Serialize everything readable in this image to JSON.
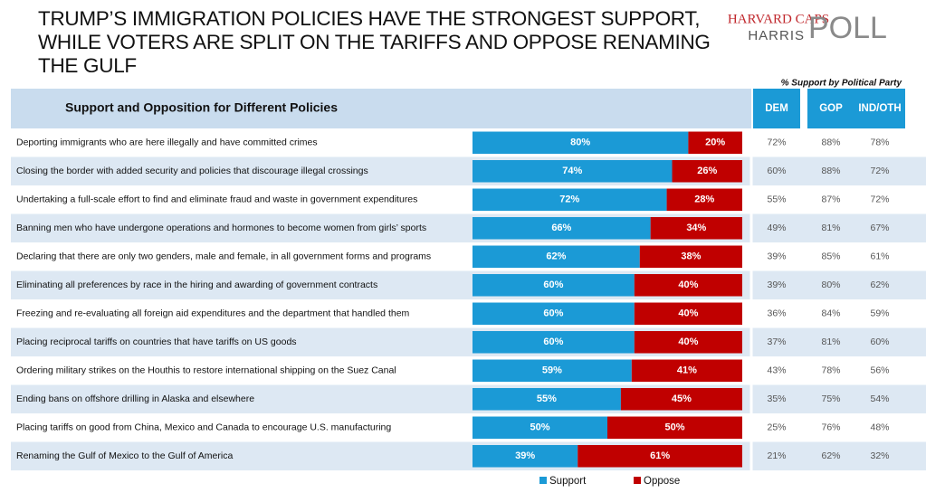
{
  "header": {
    "title": "TRUMP’S IMMIGRATION POLICIES HAVE THE STRONGEST SUPPORT, WHILE VOTERS ARE SPLIT ON THE TARIFFS AND OPPOSE RENAMING THE GULF",
    "logo_top": "HARVARD CAPS",
    "logo_mid": "HARRIS",
    "logo_big": "POLL"
  },
  "chart_data": {
    "type": "stacked-bar-horizontal",
    "title": "Support and Opposition for Different Policies",
    "categories": [
      "Deporting immigrants who are here illegally and have committed crimes",
      "Closing the border with added security and policies that discourage illegal crossings",
      "Undertaking a full-scale effort to find and eliminate fraud and waste in government expenditures",
      "Banning men who have undergone operations and hormones to become women from girls’ sports",
      "Declaring that there are only two genders, male and female, in all government forms and programs",
      "Eliminating all preferences by race in the hiring and awarding of government contracts",
      "Freezing and re-evaluating all foreign aid expenditures and the department that handled them",
      "Placing reciprocal tariffs on countries that have tariffs on US goods",
      "Ordering military strikes on the Houthis to restore international shipping on the Suez Canal",
      "Ending bans on offshore drilling in Alaska and elsewhere",
      "Placing tariffs on good from China, Mexico and Canada to encourage U.S. manufacturing",
      "Renaming the Gulf of Mexico to the Gulf of America"
    ],
    "series": [
      {
        "name": "Support",
        "color": "#1b9ad6",
        "values": [
          80,
          74,
          72,
          66,
          62,
          60,
          60,
          60,
          59,
          55,
          50,
          39
        ],
        "value_labels": [
          "80%",
          "74%",
          "72%",
          "66%",
          "62%",
          "60%",
          "60%",
          "60%",
          "59%",
          "55%",
          "50%",
          "39%"
        ]
      },
      {
        "name": "Oppose",
        "color": "#c00000",
        "values": [
          20,
          26,
          28,
          34,
          38,
          40,
          40,
          40,
          41,
          45,
          50,
          61
        ],
        "value_labels": [
          "20%",
          "26%",
          "28%",
          "34%",
          "38%",
          "40%",
          "40%",
          "40%",
          "41%",
          "45%",
          "50%",
          "61%"
        ]
      }
    ],
    "xlim": [
      0,
      100
    ]
  },
  "party_table": {
    "caption": "% Support by Political Party",
    "columns": [
      "DEM",
      "GOP",
      "IND/OTH"
    ],
    "rows": [
      [
        "72%",
        "88%",
        "78%"
      ],
      [
        "60%",
        "88%",
        "72%"
      ],
      [
        "55%",
        "87%",
        "72%"
      ],
      [
        "49%",
        "81%",
        "67%"
      ],
      [
        "39%",
        "85%",
        "61%"
      ],
      [
        "39%",
        "80%",
        "62%"
      ],
      [
        "36%",
        "84%",
        "59%"
      ],
      [
        "37%",
        "81%",
        "60%"
      ],
      [
        "43%",
        "78%",
        "56%"
      ],
      [
        "35%",
        "75%",
        "54%"
      ],
      [
        "25%",
        "76%",
        "48%"
      ],
      [
        "21%",
        "62%",
        "32%"
      ]
    ]
  }
}
